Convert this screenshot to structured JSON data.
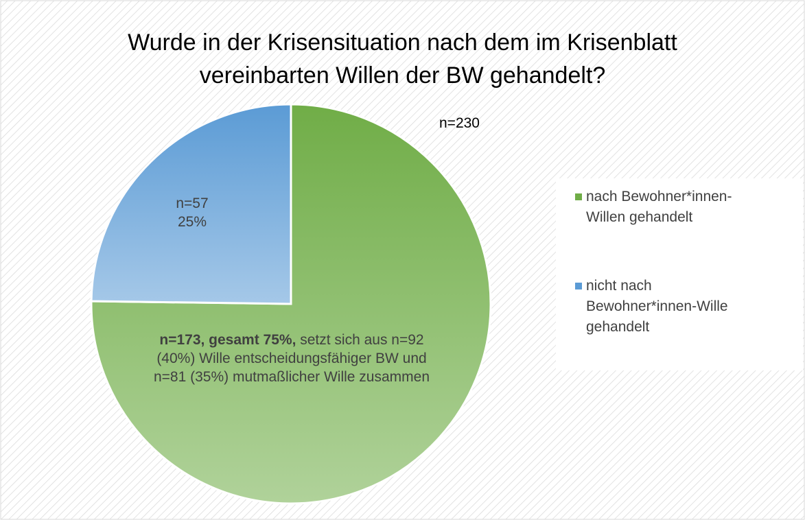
{
  "chart_data": {
    "type": "pie",
    "title": "Wurde in der Krisensituation nach dem im Krisenblatt vereinbarten Willen der BW gehandelt?",
    "annotation": "n=230",
    "categories": [
      "nach Bewohner*innen-Willen gehandelt",
      "nicht nach Bewohner*innen-Wille gehandelt"
    ],
    "values": [
      173,
      57
    ],
    "value_labels": [
      [
        "n=173, gesamt 75%,",
        " setzt sich aus n=92 (40%) Wille entscheidungsfähiger BW und n=81 (35%) mutmaßlicher Wille zusammen"
      ],
      [
        "n=57",
        "25%"
      ]
    ],
    "colors": [
      "#70ad47",
      "#5b9bd5"
    ],
    "legend": "right"
  }
}
